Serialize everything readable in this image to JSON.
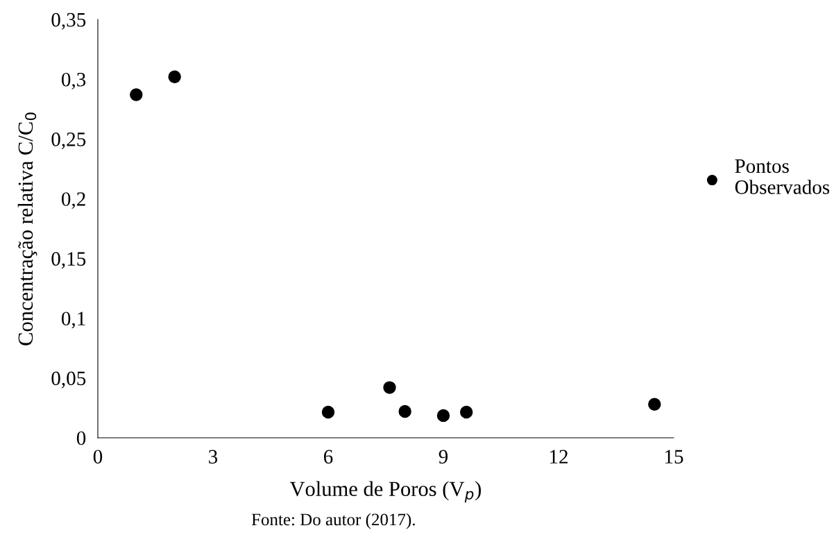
{
  "chart_data": {
    "type": "scatter",
    "xlabel": "Volume de Poros (V$_{p}$)",
    "ylabel": "Concentração relativa C/C$_{0}$",
    "x": [
      1,
      2,
      6,
      7.6,
      8,
      9,
      9.6,
      14.5
    ],
    "series": [
      {
        "name": "Pontos Observados",
        "color": "#000000",
        "values": [
          0.287,
          0.302,
          0.0215,
          0.042,
          0.022,
          0.0186,
          0.0215,
          0.028
        ]
      }
    ],
    "xlim": [
      0,
      15
    ],
    "xticks": [
      0,
      3,
      6,
      9,
      12,
      15
    ],
    "ylim": [
      0,
      0.35
    ],
    "yticks": [
      {
        "value": 0,
        "label": "0"
      },
      {
        "value": 0.05,
        "label": "0,05"
      },
      {
        "value": 0.1,
        "label": "0,1"
      },
      {
        "value": 0.15,
        "label": "0,15"
      },
      {
        "value": 0.2,
        "label": "0,2"
      },
      {
        "value": 0.25,
        "label": "0,25"
      },
      {
        "value": 0.3,
        "label": "0,3"
      },
      {
        "value": 0.35,
        "label": "0,35"
      }
    ],
    "grid": false,
    "legend": "right",
    "marker": "circle",
    "annotations": [
      "Fonte: Do autor (2017)."
    ]
  }
}
